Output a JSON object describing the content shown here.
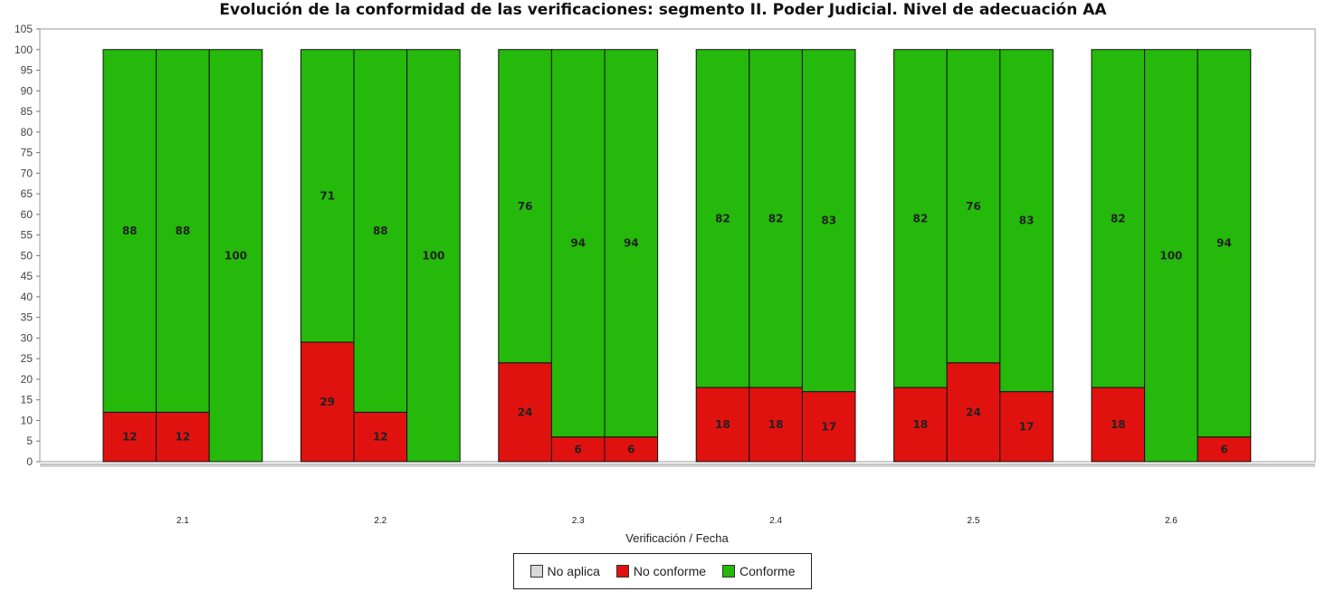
{
  "chart_data": {
    "type": "bar",
    "stacked": true,
    "title": "Evolución de la conformidad de las verificaciones: segmento II. Poder Judicial. Nivel de adecuación AA",
    "xlabel": "Verificación / Fecha",
    "ylabel": "",
    "ylim": [
      0,
      105
    ],
    "ytick_step": 5,
    "grid": false,
    "legend_position": "bottom",
    "categories": [
      "2.1",
      "2.2",
      "2.3",
      "2.4",
      "2.5",
      "2.6"
    ],
    "bars_per_category": 3,
    "series": [
      {
        "name": "No aplica",
        "color": "#d8d8d8",
        "values": [
          [
            0,
            0,
            0
          ],
          [
            0,
            0,
            0
          ],
          [
            0,
            0,
            0
          ],
          [
            0,
            0,
            0
          ],
          [
            0,
            0,
            0
          ],
          [
            0,
            0,
            0
          ]
        ]
      },
      {
        "name": "No conforme",
        "color": "#e0120f",
        "values": [
          [
            12,
            12,
            0
          ],
          [
            29,
            12,
            0
          ],
          [
            24,
            6,
            6
          ],
          [
            18,
            18,
            17
          ],
          [
            18,
            24,
            17
          ],
          [
            18,
            0,
            6
          ]
        ]
      },
      {
        "name": "Conforme",
        "color": "#25b90b",
        "values": [
          [
            88,
            88,
            100
          ],
          [
            71,
            88,
            100
          ],
          [
            76,
            94,
            94
          ],
          [
            82,
            82,
            83
          ],
          [
            82,
            76,
            83
          ],
          [
            82,
            100,
            94
          ]
        ]
      }
    ]
  }
}
